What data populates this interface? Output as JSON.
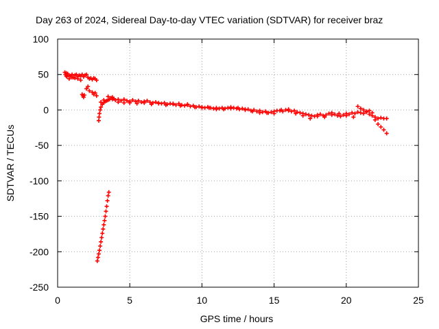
{
  "chart_data": {
    "type": "scatter",
    "title": "Day 263 of 2024, Sidereal Day-to-day VTEC variation (SDTVAR) for receiver braz",
    "xlabel": "GPS time / hours",
    "ylabel": "SDTVAR / TECUs",
    "xlim": [
      0,
      25
    ],
    "ylim": [
      -250,
      100
    ],
    "xticks": [
      0,
      5,
      10,
      15,
      20,
      25
    ],
    "yticks": [
      -250,
      -200,
      -150,
      -100,
      -50,
      0,
      50,
      100
    ],
    "xtick_labels": [
      "0",
      "5",
      "10",
      "15",
      "20",
      "25"
    ],
    "ytick_labels": [
      "-250",
      "-200",
      "-150",
      "-100",
      "-50",
      "0",
      "50",
      "100"
    ],
    "grid": true,
    "marker": "plus",
    "color": "#ff0000",
    "series": [
      {
        "name": "main-track",
        "points": [
          [
            0.5,
            53
          ],
          [
            0.55,
            50
          ],
          [
            0.6,
            52
          ],
          [
            0.65,
            47
          ],
          [
            0.7,
            51
          ],
          [
            0.8,
            49
          ],
          [
            0.9,
            48
          ],
          [
            1.0,
            50
          ],
          [
            1.1,
            46
          ],
          [
            1.2,
            49
          ],
          [
            1.3,
            50
          ],
          [
            1.4,
            47
          ],
          [
            1.5,
            49
          ],
          [
            1.6,
            48
          ],
          [
            1.7,
            50
          ],
          [
            1.8,
            47
          ],
          [
            1.9,
            49
          ],
          [
            2.0,
            50
          ],
          [
            2.1,
            46
          ],
          [
            2.2,
            44
          ],
          [
            2.3,
            45
          ],
          [
            2.4,
            43
          ],
          [
            2.5,
            45
          ],
          [
            2.6,
            44
          ],
          [
            2.7,
            42
          ],
          [
            2.85,
            -15
          ],
          [
            2.87,
            -10
          ],
          [
            2.9,
            -5
          ],
          [
            2.95,
            0
          ],
          [
            3.0,
            4
          ],
          [
            3.1,
            8
          ],
          [
            3.2,
            10
          ],
          [
            3.3,
            12
          ],
          [
            3.4,
            13
          ],
          [
            3.5,
            14
          ],
          [
            3.6,
            15
          ],
          [
            3.7,
            17
          ],
          [
            3.8,
            15
          ],
          [
            3.9,
            16
          ],
          [
            4.0,
            14
          ],
          [
            4.2,
            15
          ],
          [
            4.4,
            13
          ],
          [
            4.6,
            15
          ],
          [
            4.8,
            13
          ],
          [
            5.0,
            12
          ],
          [
            5.2,
            14
          ],
          [
            5.4,
            12
          ],
          [
            5.6,
            13
          ],
          [
            5.8,
            11
          ],
          [
            6.0,
            12
          ],
          [
            6.2,
            13
          ],
          [
            6.4,
            11
          ],
          [
            6.6,
            10
          ],
          [
            6.8,
            11
          ],
          [
            7.0,
            10
          ],
          [
            7.2,
            9
          ],
          [
            7.4,
            10
          ],
          [
            7.6,
            8
          ],
          [
            7.8,
            9
          ],
          [
            8.0,
            8
          ],
          [
            8.2,
            7
          ],
          [
            8.4,
            9
          ],
          [
            8.6,
            7
          ],
          [
            8.8,
            6
          ],
          [
            9.0,
            7
          ],
          [
            9.2,
            5
          ],
          [
            9.4,
            6
          ],
          [
            9.6,
            4
          ],
          [
            9.8,
            5
          ],
          [
            10.0,
            4
          ],
          [
            10.2,
            3
          ],
          [
            10.4,
            4
          ],
          [
            10.6,
            3
          ],
          [
            10.8,
            2
          ],
          [
            11.0,
            3
          ],
          [
            11.2,
            2
          ],
          [
            11.4,
            3
          ],
          [
            11.6,
            2
          ],
          [
            11.8,
            3
          ],
          [
            12.0,
            2
          ],
          [
            12.2,
            3
          ],
          [
            12.4,
            2
          ],
          [
            12.6,
            1
          ],
          [
            12.8,
            2
          ],
          [
            13.0,
            0
          ],
          [
            13.2,
            1
          ],
          [
            13.4,
            -1
          ],
          [
            13.6,
            0
          ],
          [
            13.8,
            -2
          ],
          [
            14.0,
            -1
          ],
          [
            14.2,
            -3
          ],
          [
            14.4,
            -2
          ],
          [
            14.6,
            -4
          ],
          [
            14.8,
            -3
          ],
          [
            15.0,
            -2
          ],
          [
            15.2,
            -1
          ],
          [
            15.4,
            -1
          ],
          [
            15.6,
            -2
          ],
          [
            15.8,
            0
          ],
          [
            16.0,
            -1
          ],
          [
            16.2,
            -2
          ],
          [
            16.4,
            -1
          ],
          [
            16.6,
            -3
          ],
          [
            16.8,
            -4
          ],
          [
            17.0,
            -5
          ],
          [
            17.2,
            -6
          ],
          [
            17.4,
            -7
          ],
          [
            17.6,
            -8
          ],
          [
            17.8,
            -9
          ],
          [
            18.0,
            -7
          ],
          [
            18.2,
            -6
          ],
          [
            18.4,
            -8
          ],
          [
            18.6,
            -7
          ],
          [
            18.8,
            -5
          ],
          [
            19.0,
            -7
          ],
          [
            19.2,
            -6
          ],
          [
            19.4,
            -8
          ],
          [
            19.6,
            -9
          ],
          [
            19.8,
            -7
          ],
          [
            20.0,
            -5
          ],
          [
            20.2,
            -6
          ],
          [
            20.4,
            -4
          ],
          [
            20.6,
            -5
          ],
          [
            20.8,
            -3
          ],
          [
            21.0,
            -4
          ],
          [
            21.2,
            -5
          ],
          [
            21.4,
            -3
          ],
          [
            21.6,
            -6
          ],
          [
            21.8,
            -8
          ],
          [
            22.0,
            -10
          ],
          [
            22.2,
            -12
          ],
          [
            22.4,
            -11
          ],
          [
            22.6,
            -12
          ],
          [
            22.8,
            -12
          ]
        ]
      },
      {
        "name": "scattered-track",
        "points": [
          [
            0.6,
            48
          ],
          [
            0.8,
            44
          ],
          [
            1.0,
            46
          ],
          [
            1.2,
            45
          ],
          [
            1.4,
            44
          ],
          [
            1.6,
            42
          ],
          [
            1.7,
            22
          ],
          [
            1.75,
            20
          ],
          [
            1.8,
            18
          ],
          [
            1.85,
            21
          ],
          [
            2.0,
            30
          ],
          [
            2.1,
            33
          ],
          [
            2.2,
            27
          ],
          [
            2.4,
            25
          ],
          [
            2.5,
            22
          ],
          [
            2.6,
            24
          ],
          [
            2.7,
            20
          ],
          [
            3.0,
            11
          ],
          [
            3.2,
            14
          ],
          [
            3.5,
            19
          ],
          [
            3.8,
            18
          ],
          [
            4.2,
            11
          ],
          [
            4.6,
            10
          ],
          [
            5.0,
            10
          ],
          [
            5.5,
            9
          ],
          [
            6.0,
            10
          ],
          [
            6.5,
            8
          ],
          [
            7.0,
            9
          ],
          [
            7.5,
            7
          ],
          [
            8.0,
            9
          ],
          [
            8.5,
            6
          ],
          [
            9.0,
            8
          ],
          [
            9.5,
            4
          ],
          [
            10.0,
            3
          ],
          [
            10.5,
            3
          ],
          [
            11.0,
            1
          ],
          [
            11.5,
            1
          ],
          [
            12.0,
            4
          ],
          [
            12.5,
            3
          ],
          [
            13.0,
            1
          ],
          [
            13.5,
            -2
          ],
          [
            14.0,
            -4
          ],
          [
            14.5,
            -4
          ],
          [
            15.0,
            -5
          ],
          [
            15.5,
            0
          ],
          [
            16.0,
            1
          ],
          [
            16.5,
            -5
          ],
          [
            17.0,
            -8
          ],
          [
            17.5,
            -12
          ],
          [
            18.0,
            -9
          ],
          [
            18.5,
            -10
          ],
          [
            19.0,
            -4
          ],
          [
            19.5,
            -5
          ],
          [
            20.0,
            -8
          ],
          [
            20.5,
            -10
          ],
          [
            20.8,
            5
          ],
          [
            21.0,
            2
          ],
          [
            21.2,
            0
          ],
          [
            21.4,
            -2
          ],
          [
            21.6,
            -1
          ],
          [
            21.8,
            -4
          ],
          [
            22.0,
            -14
          ],
          [
            22.2,
            -20
          ],
          [
            22.4,
            -24
          ],
          [
            22.6,
            -28
          ],
          [
            22.8,
            -33
          ]
        ]
      },
      {
        "name": "steep-segment",
        "points": [
          [
            2.75,
            -213
          ],
          [
            2.8,
            -208
          ],
          [
            2.85,
            -203
          ],
          [
            2.9,
            -198
          ],
          [
            2.95,
            -192
          ],
          [
            3.0,
            -186
          ],
          [
            3.05,
            -180
          ],
          [
            3.1,
            -174
          ],
          [
            3.15,
            -168
          ],
          [
            3.2,
            -162
          ],
          [
            3.25,
            -156
          ],
          [
            3.3,
            -150
          ],
          [
            3.35,
            -143
          ],
          [
            3.4,
            -136
          ],
          [
            3.45,
            -128
          ],
          [
            3.5,
            -121
          ],
          [
            3.55,
            -116
          ]
        ]
      }
    ]
  }
}
